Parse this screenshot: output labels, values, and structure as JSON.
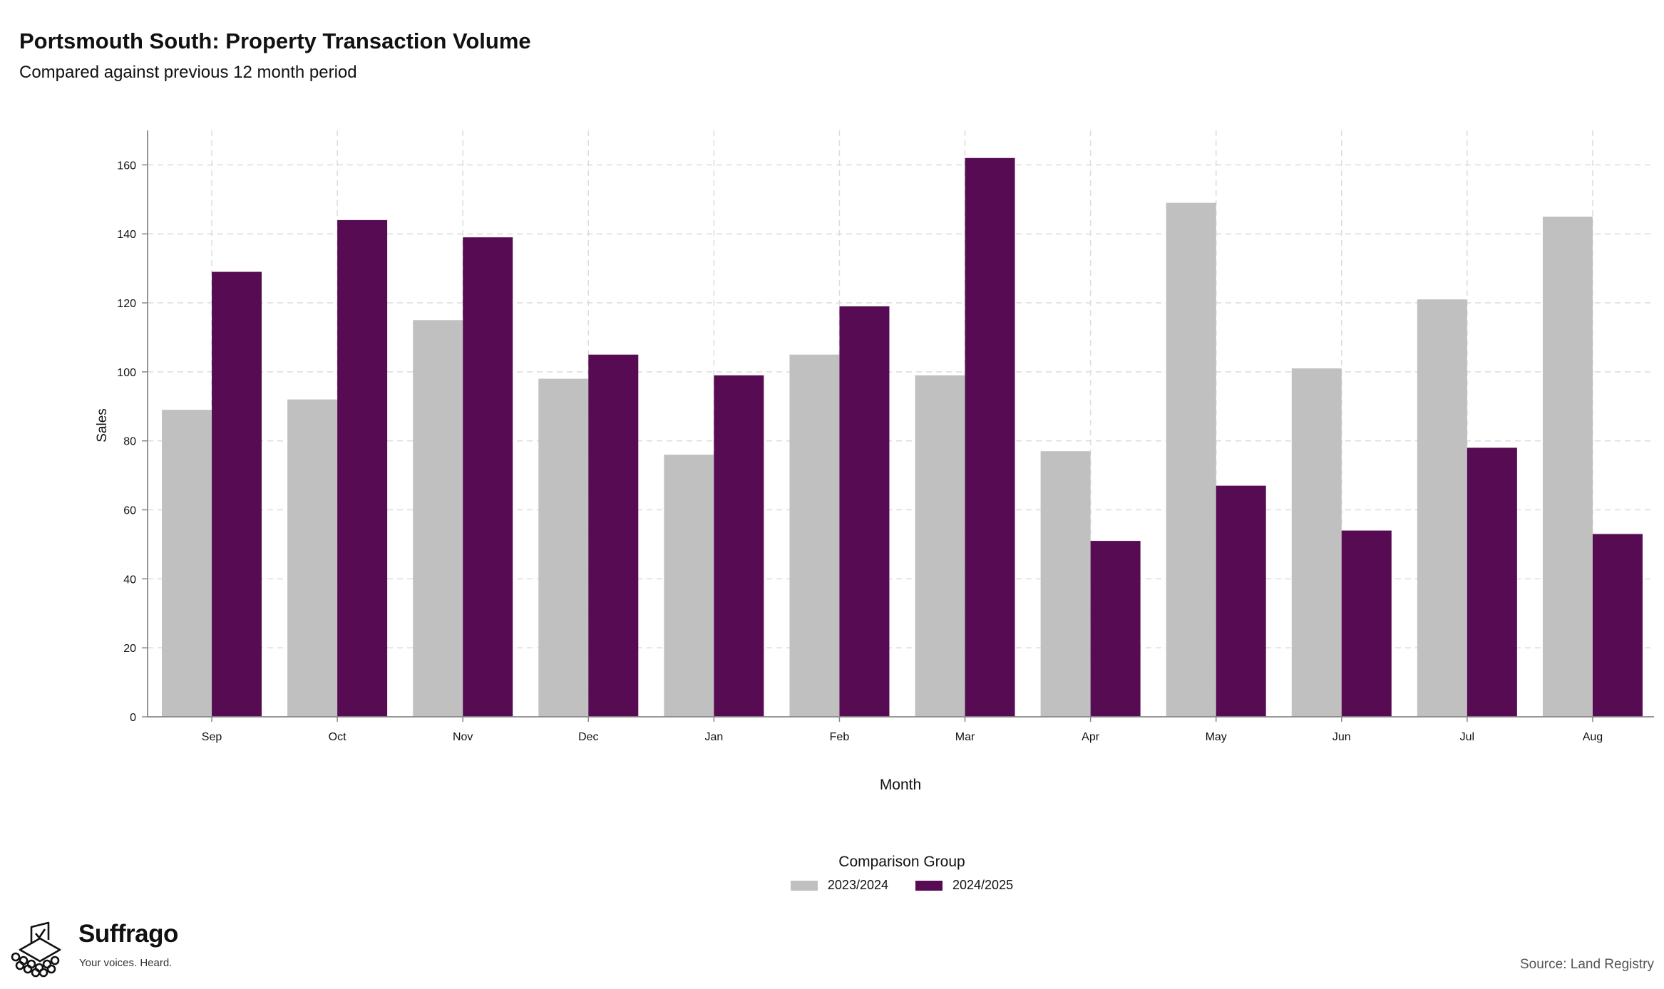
{
  "chart_data": {
    "type": "bar",
    "title": "Portsmouth South: Property Transaction Volume",
    "subtitle": "Compared against previous 12 month period",
    "xlabel": "Month",
    "ylabel": "Sales",
    "categories": [
      "Sep",
      "Oct",
      "Nov",
      "Dec",
      "Jan",
      "Feb",
      "Mar",
      "Apr",
      "May",
      "Jun",
      "Jul",
      "Aug"
    ],
    "series": [
      {
        "name": "2023/2024",
        "color": "#c0c0c0",
        "values": [
          89,
          92,
          115,
          98,
          76,
          105,
          99,
          77,
          149,
          101,
          121,
          145
        ]
      },
      {
        "name": "2024/2025",
        "color": "#560b52",
        "values": [
          129,
          144,
          139,
          105,
          99,
          119,
          162,
          51,
          67,
          54,
          78,
          53
        ]
      }
    ],
    "ylim": [
      0,
      170
    ],
    "yticks": [
      0,
      20,
      40,
      60,
      80,
      100,
      120,
      140,
      160
    ],
    "grid": true,
    "legend_title": "Comparison Group",
    "legend_position": "bottom-center"
  },
  "brand": {
    "name": "Suffrago",
    "tagline": "Your voices. Heard.",
    "logo_icon": "ballot-box-icon"
  },
  "source": "Source: Land Registry"
}
